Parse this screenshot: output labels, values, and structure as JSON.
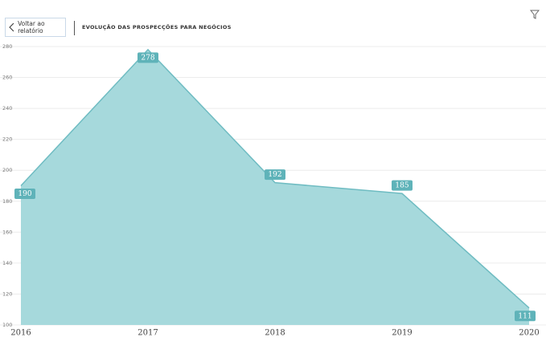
{
  "nav": {
    "back_button": "Voltar ao relatório"
  },
  "chart_data": {
    "type": "area",
    "title": "EVOLUÇÃO DAS PROSPECÇÕES PARA NEGÓCIOS",
    "categories": [
      "2016",
      "2017",
      "2018",
      "2019",
      "2020"
    ],
    "values": [
      190,
      278,
      192,
      185,
      111
    ],
    "color": "#a6d9dc",
    "line_color": "#6fbcc2",
    "label_color": "#5fb3b9",
    "ylim": [
      100,
      280
    ],
    "yticks": [
      100,
      120,
      140,
      160,
      180,
      200,
      220,
      240,
      260,
      280
    ],
    "grid": true
  }
}
